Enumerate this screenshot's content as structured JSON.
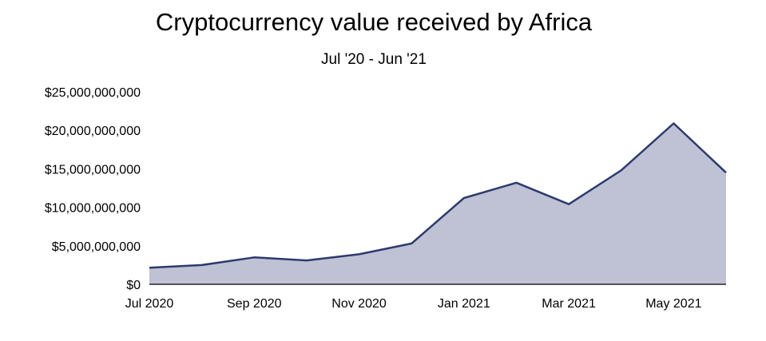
{
  "chart_data": {
    "type": "area",
    "title": "Cryptocurrency value received by Africa",
    "subtitle": "Jul '20 - Jun '21",
    "xlabel": "",
    "ylabel": "",
    "x": [
      "Jul 2020",
      "Aug 2020",
      "Sep 2020",
      "Oct 2020",
      "Nov 2020",
      "Dec 2020",
      "Jan 2021",
      "Feb 2021",
      "Mar 2021",
      "Apr 2021",
      "May 2021",
      "Jun 2021"
    ],
    "values": [
      2150000000,
      2500000000,
      3500000000,
      3100000000,
      3900000000,
      5300000000,
      11200000000,
      13200000000,
      10400000000,
      14800000000,
      20900000000,
      14500000000
    ],
    "ylim": [
      0,
      25000000000
    ],
    "y_ticks": [
      "$0",
      "$5,000,000,000",
      "$10,000,000,000",
      "$15,000,000,000",
      "$20,000,000,000",
      "$25,000,000,000"
    ],
    "x_tick_labels": [
      "Jul 2020",
      "Sep 2020",
      "Nov 2020",
      "Jan 2021",
      "Mar 2021",
      "May 2021"
    ],
    "grid": false,
    "colors": {
      "line": "#2d3a6e",
      "fill": "#bfc2d4"
    }
  }
}
